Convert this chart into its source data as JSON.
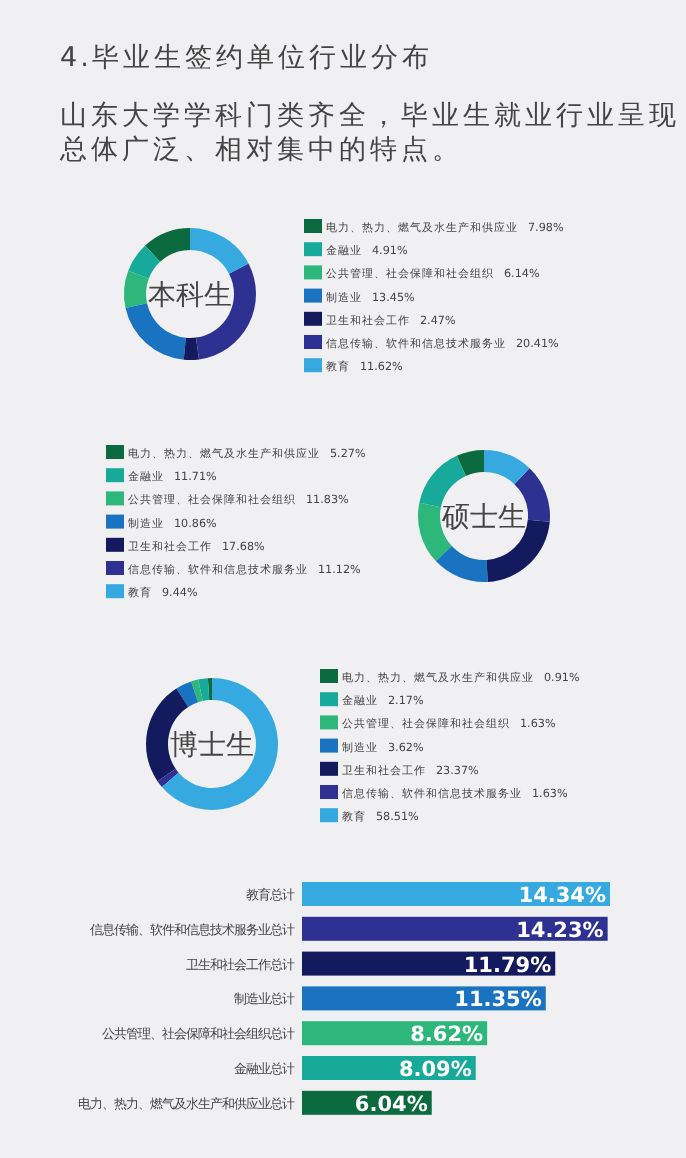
{
  "chart_data": [
    {
      "type": "other",
      "title": "4.毕业生签约单位行业分布",
      "subtitle": "山东大学学科门类齐全，毕业生就业行业呈现总体广泛、相对集中的特点。"
    },
    {
      "type": "donut",
      "title": "本科生",
      "legend": "right",
      "categories": [
        "电力、热力、燃气及水生产和供应业",
        "金融业",
        "公共管理、社会保障和社会组织",
        "制造业",
        "卫生和社会工作",
        "信息传输、软件和信息技术服务业",
        "教育"
      ],
      "values": [
        7.98,
        4.91,
        6.14,
        13.45,
        2.47,
        20.41,
        11.62
      ],
      "value_labels": [
        "7.98%",
        "4.91%",
        "6.14%",
        "13.45%",
        "2.47%",
        "20.41%",
        "11.62%"
      ],
      "colors": [
        "#0b6b3f",
        "#17a99a",
        "#2db77b",
        "#1a73c0",
        "#141a5e",
        "#2e3192",
        "#35a9e0"
      ]
    },
    {
      "type": "donut",
      "title": "硕士生",
      "legend": "left",
      "categories": [
        "电力、热力、燃气及水生产和供应业",
        "金融业",
        "公共管理、社会保障和社会组织",
        "制造业",
        "卫生和社会工作",
        "信息传输、软件和信息技术服务业",
        "教育"
      ],
      "values": [
        5.27,
        11.71,
        11.83,
        10.86,
        17.68,
        11.12,
        9.44
      ],
      "value_labels": [
        "5.27%",
        "11.71%",
        "11.83%",
        "10.86%",
        "17.68%",
        "11.12%",
        "9.44%"
      ],
      "colors": [
        "#0b6b3f",
        "#17a99a",
        "#2db77b",
        "#1a73c0",
        "#141a5e",
        "#2e3192",
        "#35a9e0"
      ]
    },
    {
      "type": "donut",
      "title": "博士生",
      "legend": "right",
      "categories": [
        "电力、热力、燃气及水生产和供应业",
        "金融业",
        "公共管理、社会保障和社会组织",
        "制造业",
        "卫生和社会工作",
        "信息传输、软件和信息技术服务业",
        "教育"
      ],
      "values": [
        0.91,
        2.17,
        1.63,
        3.62,
        23.37,
        1.63,
        58.51
      ],
      "value_labels": [
        "0.91%",
        "2.17%",
        "1.63%",
        "3.62%",
        "23.37%",
        "1.63%",
        "58.51%"
      ],
      "colors": [
        "#0b6b3f",
        "#17a99a",
        "#2db77b",
        "#1a73c0",
        "#141a5e",
        "#2e3192",
        "#35a9e0"
      ]
    },
    {
      "type": "bar",
      "orientation": "horizontal",
      "categories": [
        "教育总计",
        "信息传输、软件和信息技术服务业总计",
        "卫生和社会工作总计",
        "制造业总计",
        "公共管理、社会保障和社会组织总计",
        "金融业总计",
        "电力、热力、燃气及水生产和供应业总计"
      ],
      "values": [
        14.34,
        14.23,
        11.79,
        11.35,
        8.62,
        8.09,
        6.04
      ],
      "value_labels": [
        "14.34%",
        "14.23%",
        "11.79%",
        "11.35%",
        "8.62%",
        "8.09%",
        "6.04%"
      ],
      "colors": [
        "#35a9e0",
        "#2e3192",
        "#141a5e",
        "#1a73c0",
        "#2db77b",
        "#17a99a",
        "#0b6b3f"
      ]
    }
  ]
}
